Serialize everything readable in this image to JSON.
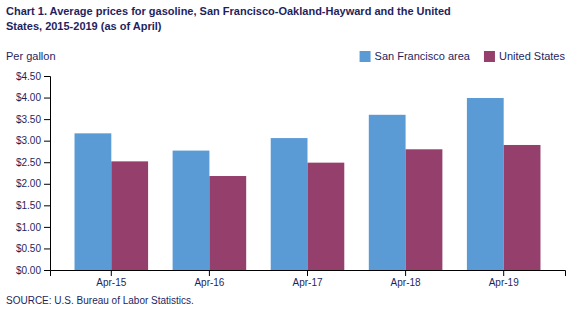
{
  "chart_data": {
    "type": "bar",
    "title": [
      "Chart 1. Average prices for gasoline, San Francisco-Oakland-Hayward and the United",
      "States, 2015-2019  (as of April)"
    ],
    "y_label": "Per gallon",
    "annotations": [
      "SOURCE: U.S. Bureau of Labor Statistics."
    ],
    "categories": [
      "Apr-15",
      "Apr-16",
      "Apr-17",
      "Apr-18",
      "Apr-19"
    ],
    "series": [
      {
        "name": "San Francisco area",
        "color": "#5B9BD5",
        "values": [
          3.17,
          2.77,
          3.06,
          3.6,
          3.99
        ]
      },
      {
        "name": "United States",
        "color": "#943F6C",
        "values": [
          2.52,
          2.18,
          2.49,
          2.8,
          2.9
        ]
      }
    ],
    "ylim": [
      0.0,
      4.5
    ],
    "yticks": [
      {
        "value": 0.0,
        "label": "$0.00"
      },
      {
        "value": 0.5,
        "label": "$0.50"
      },
      {
        "value": 1.0,
        "label": "$1.00"
      },
      {
        "value": 1.5,
        "label": "$1.50"
      },
      {
        "value": 2.0,
        "label": "$2.00"
      },
      {
        "value": 2.5,
        "label": "$2.50"
      },
      {
        "value": 3.0,
        "label": "$3.00"
      },
      {
        "value": 3.5,
        "label": "$3.50"
      },
      {
        "value": 4.0,
        "label": "$4.00"
      },
      {
        "value": 4.5,
        "label": "$4.50"
      }
    ],
    "legend": "upper right",
    "grid": false
  }
}
